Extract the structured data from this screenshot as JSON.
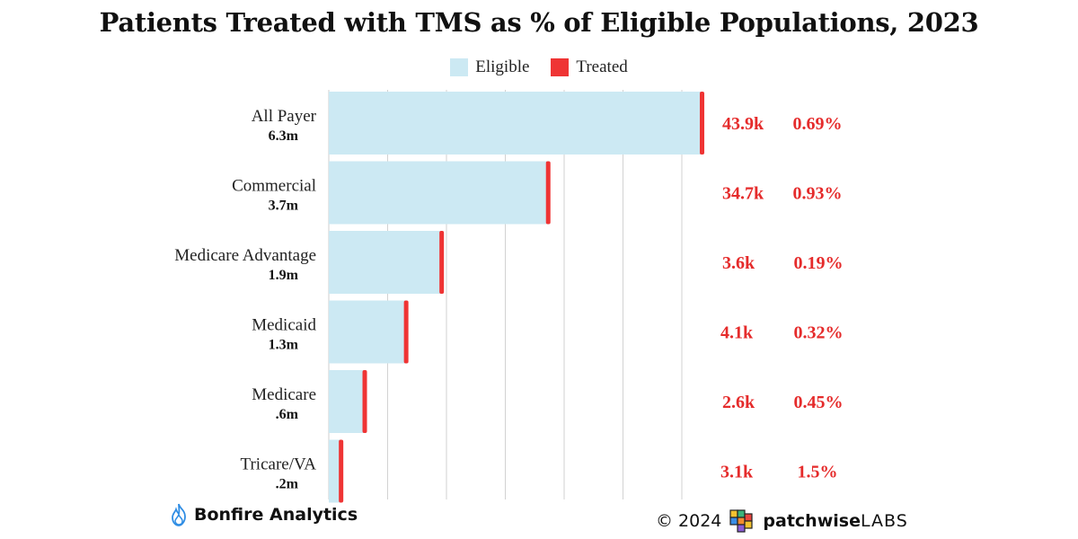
{
  "chart_data": {
    "type": "bar",
    "orientation": "horizontal",
    "title": "Patients Treated with TMS as % of Eligible Populations, 2023",
    "legend": [
      {
        "name": "Eligible",
        "color": "#cce9f3"
      },
      {
        "name": "Treated",
        "color": "#ef3434"
      }
    ],
    "legend_position": "top-center",
    "grid": true,
    "xlim": [
      0,
      6.3
    ],
    "categories": [
      "All Payer",
      "Commercial",
      "Medicare Advantage",
      "Medicaid",
      "Medicare",
      "Tricare/VA"
    ],
    "eligible_labels": [
      "6.3m",
      "3.7m",
      "1.9m",
      "1.3m",
      ".6m",
      ".2m"
    ],
    "eligible_values_m": [
      6.3,
      3.7,
      1.9,
      1.3,
      0.6,
      0.2
    ],
    "treated_labels": [
      "43.9k",
      "34.7k",
      "3.6k",
      "4.1k",
      "2.6k",
      "3.1k"
    ],
    "percent_labels": [
      "0.69%",
      "0.93%",
      "0.19%",
      "0.32%",
      "0.45%",
      "1.5%"
    ]
  },
  "footer": {
    "left_brand": "Bonfire Analytics",
    "copyright": "© 2024",
    "right_brand_name": "patchwise",
    "right_brand_suffix": "LABS"
  }
}
